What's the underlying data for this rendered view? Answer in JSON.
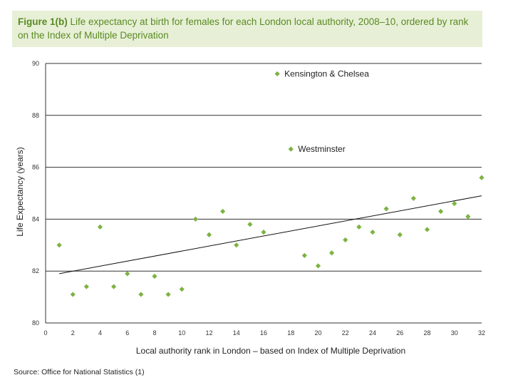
{
  "header": {
    "title_bold": "Figure 1(b)",
    "title_rest": " Life expectancy at birth for females for each London local authority, 2008–10, ordered by rank on the Index of Multiple Deprivation"
  },
  "footer": {
    "source": "Source: Office for National Statistics (1)"
  },
  "colors": {
    "marker": "#7cb342",
    "title_text": "#5a8a23",
    "title_bg": "#e7f0d6"
  },
  "chart_data": {
    "type": "scatter",
    "title": "Life expectancy at birth for females for each London local authority, 2008–10, ordered by rank on the Index of Multiple Deprivation",
    "xlabel": "Local authority rank in London – based on Index of Multiple Deprivation",
    "ylabel": "Life Expectancy (years)",
    "xlim": [
      0,
      32
    ],
    "ylim": [
      80,
      90
    ],
    "xticks": [
      0,
      2,
      4,
      6,
      8,
      10,
      12,
      14,
      16,
      18,
      20,
      22,
      24,
      26,
      28,
      30,
      32
    ],
    "yticks": [
      80,
      82,
      84,
      86,
      88,
      90
    ],
    "grid": "horizontal",
    "series": [
      {
        "name": "Local authorities",
        "points": [
          {
            "x": 1,
            "y": 83.0
          },
          {
            "x": 2,
            "y": 81.1
          },
          {
            "x": 3,
            "y": 81.4
          },
          {
            "x": 4,
            "y": 83.7
          },
          {
            "x": 5,
            "y": 81.4
          },
          {
            "x": 6,
            "y": 81.9
          },
          {
            "x": 7,
            "y": 81.1
          },
          {
            "x": 8,
            "y": 81.8
          },
          {
            "x": 9,
            "y": 81.1
          },
          {
            "x": 10,
            "y": 81.3
          },
          {
            "x": 11,
            "y": 84.0
          },
          {
            "x": 12,
            "y": 83.4
          },
          {
            "x": 13,
            "y": 84.3
          },
          {
            "x": 14,
            "y": 83.0
          },
          {
            "x": 15,
            "y": 83.8
          },
          {
            "x": 16,
            "y": 83.5
          },
          {
            "x": 17,
            "y": 89.6
          },
          {
            "x": 18,
            "y": 86.7
          },
          {
            "x": 19,
            "y": 82.6
          },
          {
            "x": 20,
            "y": 82.2
          },
          {
            "x": 21,
            "y": 82.7
          },
          {
            "x": 22,
            "y": 83.2
          },
          {
            "x": 23,
            "y": 83.7
          },
          {
            "x": 24,
            "y": 83.5
          },
          {
            "x": 25,
            "y": 84.4
          },
          {
            "x": 26,
            "y": 83.4
          },
          {
            "x": 27,
            "y": 84.8
          },
          {
            "x": 28,
            "y": 83.6
          },
          {
            "x": 29,
            "y": 84.3
          },
          {
            "x": 30,
            "y": 84.6
          },
          {
            "x": 31,
            "y": 84.1
          },
          {
            "x": 32,
            "y": 85.6
          }
        ]
      }
    ],
    "trendline": {
      "x": [
        1,
        32
      ],
      "y": [
        81.9,
        84.9
      ]
    },
    "annotations": [
      {
        "text": "Kensington & Chelsea",
        "x": 17,
        "y": 89.6
      },
      {
        "text": "Westminster",
        "x": 18,
        "y": 86.7
      }
    ]
  }
}
